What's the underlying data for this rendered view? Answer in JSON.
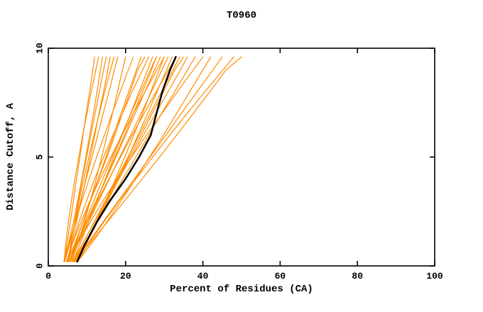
{
  "chart_data": {
    "type": "line",
    "title": "T0960",
    "xlabel": "Percent of Residues (CA)",
    "ylabel": "Distance Cutoff, A",
    "xlim": [
      0,
      100
    ],
    "ylim": [
      0,
      10
    ],
    "xticks": [
      0,
      20,
      40,
      60,
      80,
      100
    ],
    "yticks": [
      0,
      5,
      10
    ],
    "grid": false,
    "legend": "none",
    "colors": {
      "axis": "#000000",
      "background": "#ffffff"
    },
    "style": {
      "model": {
        "color": "#ff8c00",
        "width": 1.2
      },
      "highlight": {
        "color": "#000000",
        "width": 2.5
      }
    },
    "sample_y": [
      0.2,
      1,
      2,
      3,
      4,
      5,
      6,
      7,
      8,
      9,
      9.6
    ],
    "series": [
      {
        "name": "model-curve-01",
        "role": "model",
        "x": [
          4.2,
          4.8,
          5.7,
          6.5,
          7.3,
          8.2,
          9.0,
          9.8,
          10.7,
          11.5,
          12.0
        ]
      },
      {
        "name": "model-curve-02",
        "role": "model",
        "x": [
          4.1,
          4.5,
          5.2,
          6.0,
          6.9,
          7.9,
          8.9,
          10.0,
          11.1,
          12.3,
          13.0
        ]
      },
      {
        "name": "model-curve-03",
        "role": "model",
        "x": [
          4.0,
          5.2,
          6.5,
          7.6,
          8.7,
          9.7,
          10.7,
          11.7,
          12.6,
          13.5,
          14.0
        ]
      },
      {
        "name": "model-curve-04",
        "role": "model",
        "x": [
          5.1,
          5.8,
          6.8,
          7.8,
          8.8,
          9.9,
          11.0,
          12.1,
          13.2,
          14.3,
          15.0
        ]
      },
      {
        "name": "model-curve-05",
        "role": "model",
        "x": [
          4.9,
          6.0,
          7.3,
          8.5,
          9.7,
          10.9,
          12.0,
          13.1,
          14.3,
          15.4,
          16.0
        ]
      },
      {
        "name": "model-curve-06",
        "role": "model",
        "x": [
          5.1,
          5.8,
          6.8,
          8.0,
          9.2,
          10.5,
          11.8,
          13.2,
          14.6,
          16.1,
          17.0
        ]
      },
      {
        "name": "model-curve-07",
        "role": "model",
        "x": [
          4.3,
          5.5,
          6.9,
          8.4,
          9.8,
          11.3,
          12.8,
          14.2,
          15.7,
          17.1,
          18.0
        ]
      },
      {
        "name": "model-curve-08",
        "role": "model",
        "x": [
          6.1,
          7.6,
          9.3,
          10.9,
          12.4,
          13.8,
          15.2,
          16.6,
          17.9,
          19.2,
          20.0
        ]
      },
      {
        "name": "model-curve-09",
        "role": "model",
        "x": [
          4.2,
          5.3,
          7.0,
          8.7,
          10.6,
          12.5,
          14.5,
          16.5,
          18.6,
          20.7,
          22.0
        ]
      },
      {
        "name": "model-curve-10",
        "role": "model",
        "x": [
          5.4,
          7.0,
          8.9,
          10.9,
          12.9,
          14.9,
          16.9,
          18.8,
          20.8,
          22.8,
          24.0
        ]
      },
      {
        "name": "model-curve-11",
        "role": "model",
        "x": [
          5.0,
          6.8,
          8.9,
          11.0,
          13.0,
          15.2,
          17.2,
          19.2,
          21.2,
          23.1,
          25.0
        ]
      },
      {
        "name": "model-curve-12",
        "role": "model",
        "x": [
          5.2,
          6.2,
          7.9,
          9.9,
          12.0,
          14.3,
          16.7,
          19.2,
          21.7,
          24.4,
          26.0
        ]
      },
      {
        "name": "model-curve-13",
        "role": "model",
        "x": [
          6.4,
          8.2,
          10.4,
          12.6,
          14.8,
          16.9,
          19.1,
          21.3,
          23.5,
          25.7,
          27.0
        ]
      },
      {
        "name": "model-curve-14",
        "role": "model",
        "x": [
          4.7,
          7.1,
          9.8,
          12.4,
          14.9,
          17.3,
          19.7,
          22.0,
          24.4,
          26.7,
          28.0
        ]
      },
      {
        "name": "model-curve-15",
        "role": "model",
        "x": [
          5.8,
          7.4,
          9.5,
          11.8,
          14.1,
          16.5,
          18.9,
          21.4,
          23.9,
          26.4,
          28.0
        ]
      },
      {
        "name": "model-curve-16",
        "role": "model",
        "x": [
          5.5,
          7.5,
          10.0,
          12.5,
          15.0,
          17.5,
          20.0,
          22.5,
          25.0,
          27.5,
          29.0
        ]
      },
      {
        "name": "model-curve-17",
        "role": "model",
        "x": [
          6.9,
          9.5,
          12.3,
          14.9,
          17.4,
          19.8,
          22.1,
          24.4,
          26.5,
          28.7,
          30.0
        ]
      },
      {
        "name": "model-curve-18",
        "role": "model",
        "x": [
          4.7,
          6.2,
          8.4,
          10.8,
          13.4,
          16.2,
          19.0,
          22.0,
          25.0,
          28.1,
          30.0
        ]
      },
      {
        "name": "model-curve-19",
        "role": "model",
        "x": [
          5.5,
          7.7,
          10.4,
          13.1,
          15.8,
          18.5,
          21.3,
          24.0,
          26.7,
          29.4,
          31.0
        ]
      },
      {
        "name": "model-curve-20",
        "role": "model",
        "x": [
          7.3,
          9.8,
          12.7,
          15.5,
          18.1,
          20.7,
          23.2,
          25.7,
          28.1,
          30.6,
          32.0
        ]
      },
      {
        "name": "model-curve-21",
        "role": "model",
        "x": [
          5.4,
          7.3,
          10.0,
          12.8,
          15.7,
          18.7,
          21.7,
          24.8,
          27.9,
          31.1,
          33.0
        ]
      },
      {
        "name": "model-curve-22",
        "role": "model",
        "x": [
          6.6,
          8.9,
          11.8,
          14.8,
          17.7,
          20.6,
          23.5,
          26.4,
          29.3,
          32.3,
          34.0
        ]
      },
      {
        "name": "model-curve-23",
        "role": "model",
        "x": [
          6.2,
          8.8,
          11.9,
          15.0,
          18.0,
          21.0,
          24.0,
          26.9,
          29.8,
          32.7,
          35.0
        ]
      },
      {
        "name": "model-curve-24",
        "role": "model",
        "x": [
          7.5,
          9.7,
          12.4,
          15.3,
          18.3,
          21.4,
          24.6,
          27.8,
          31.0,
          34.2,
          36.0
        ]
      },
      {
        "name": "model-curve-25",
        "role": "model",
        "x": [
          6.7,
          9.3,
          12.7,
          16.0,
          19.3,
          22.7,
          26.0,
          29.3,
          32.7,
          36.0,
          38.0
        ]
      },
      {
        "name": "model-curve-26",
        "role": "model",
        "x": [
          5.4,
          7.6,
          10.8,
          14.2,
          17.8,
          21.5,
          25.4,
          29.4,
          33.4,
          37.5,
          40.0
        ]
      },
      {
        "name": "model-curve-27",
        "role": "model",
        "x": [
          7.6,
          11.1,
          15.1,
          18.9,
          22.6,
          26.2,
          29.8,
          33.2,
          36.6,
          40.0,
          42.0
        ]
      },
      {
        "name": "model-curve-28",
        "role": "model",
        "x": [
          6.8,
          10.1,
          14.1,
          18.2,
          22.3,
          26.3,
          30.4,
          34.4,
          38.5,
          42.6,
          45.0
        ]
      },
      {
        "name": "model-curve-29",
        "role": "model",
        "x": [
          7.6,
          10.4,
          14.3,
          18.4,
          22.7,
          27.0,
          31.4,
          35.9,
          40.5,
          45.2,
          48.0
        ]
      },
      {
        "name": "model-curve-30",
        "role": "model",
        "x": [
          7.0,
          10.6,
          15.2,
          19.8,
          24.3,
          28.8,
          33.2,
          37.5,
          41.8,
          46.0,
          50.0
        ]
      },
      {
        "name": "highlighted-model-curve",
        "role": "highlight",
        "x": [
          7.5,
          9.5,
          12.5,
          16.0,
          20.0,
          23.5,
          26.5,
          28.0,
          29.5,
          31.5,
          33.0
        ]
      }
    ]
  }
}
